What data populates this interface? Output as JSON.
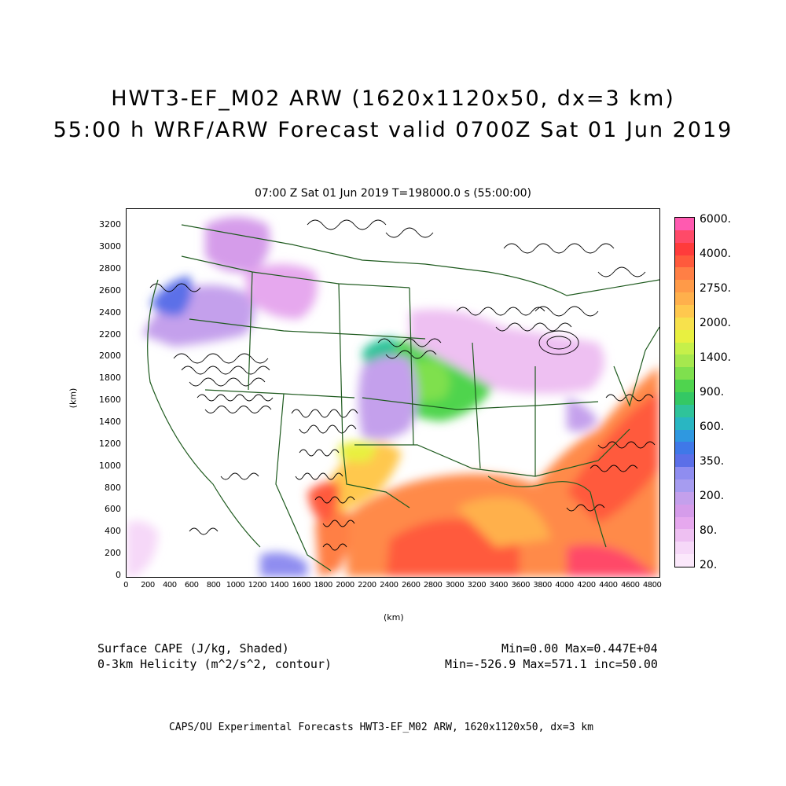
{
  "titles": {
    "line1": "HWT3-EF_M02 ARW (1620x1120x50, dx=3 km)",
    "line2": "55:00 h WRF/ARW Forecast valid 0700Z Sat 01 Jun 2019",
    "plot_subtitle": "07:00 Z Sat 01 Jun 2019    T=198000.0 s (55:00:00)"
  },
  "axes": {
    "x_label": "(km)",
    "y_label": "(km)",
    "x_ticks": [
      "0",
      "200",
      "400",
      "600",
      "800",
      "1000",
      "1200",
      "1400",
      "1600",
      "1800",
      "2000",
      "2200",
      "2400",
      "2600",
      "2800",
      "3000",
      "3200",
      "3400",
      "3600",
      "3800",
      "4000",
      "4200",
      "4400",
      "4600",
      "4800"
    ],
    "y_ticks": [
      "0",
      "200",
      "400",
      "600",
      "800",
      "1000",
      "1200",
      "1400",
      "1600",
      "1800",
      "2000",
      "2200",
      "2400",
      "2600",
      "2800",
      "3000",
      "3200"
    ],
    "x_range": [
      0,
      4860
    ],
    "y_range": [
      0,
      3360
    ]
  },
  "colorbar": {
    "labels": [
      "6000.",
      "4000.",
      "2750.",
      "2000.",
      "1400.",
      "900.",
      "600.",
      "350.",
      "200.",
      "80.",
      "20."
    ],
    "colors": [
      "#ff5ab0",
      "#ff4a68",
      "#ff3b3b",
      "#ff5a3c",
      "#ff7f45",
      "#ff9a48",
      "#ffb04c",
      "#ffc84e",
      "#f7e14c",
      "#e8f040",
      "#c6f04a",
      "#a6e84e",
      "#7fe04e",
      "#4fd44e",
      "#34c864",
      "#2fc39a",
      "#29b6c2",
      "#2f98e0",
      "#3f78e8",
      "#5b6fe8",
      "#8f8df0",
      "#a69cf0",
      "#c4a0ec",
      "#d59cea",
      "#e6a8ee",
      "#eec0f2",
      "#f6d8f8",
      "#fbe8fb"
    ]
  },
  "captions": {
    "field1": "Surface CAPE (J/kg, Shaded)",
    "field2": "0-3km Helicity (m^2/s^2, contour)",
    "stats1": "Min=0.00 Max=0.447E+04",
    "stats2": "Min=-526.9 Max=571.1 inc=50.00"
  },
  "footer": "CAPS/OU Experimental Forecasts  HWT3-EF_M02 ARW, 1620x1120x50, dx=3 km",
  "map_colors": {
    "border": "#1e5a1e",
    "contour": "#000000"
  }
}
